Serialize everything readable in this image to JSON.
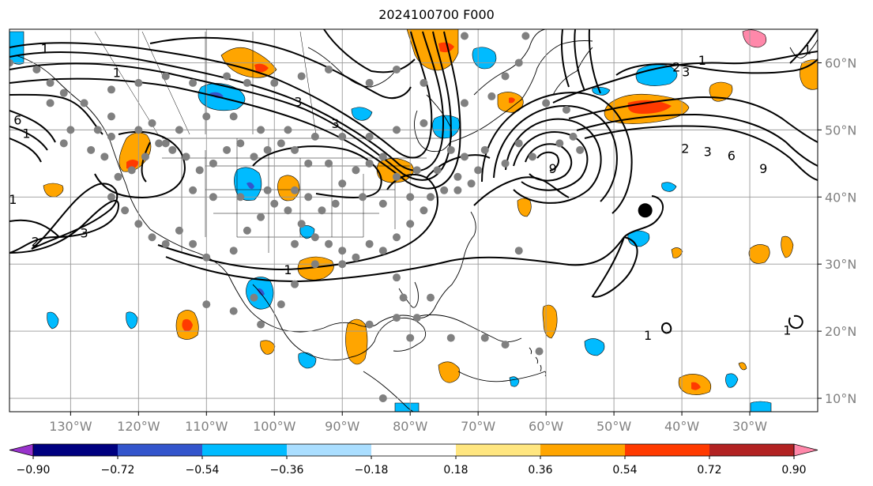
{
  "map": {
    "title": "2024100700 F000",
    "projection": "cylindrical",
    "lon_range": [
      -139,
      -20
    ],
    "lat_range": [
      8,
      65
    ],
    "grid": true,
    "lon_ticks": [
      {
        "lon": -130,
        "label": "130°W"
      },
      {
        "lon": -120,
        "label": "120°W"
      },
      {
        "lon": -110,
        "label": "110°W"
      },
      {
        "lon": -100,
        "label": "100°W"
      },
      {
        "lon": -90,
        "label": "90°W"
      },
      {
        "lon": -80,
        "label": "80°W"
      },
      {
        "lon": -70,
        "label": "70°W"
      },
      {
        "lon": -60,
        "label": "60°W"
      },
      {
        "lon": -50,
        "label": "50°W"
      },
      {
        "lon": -40,
        "label": "40°W"
      },
      {
        "lon": -30,
        "label": "30°W"
      }
    ],
    "lat_ticks": [
      {
        "lat": 60,
        "label": "60°N"
      },
      {
        "lat": 50,
        "label": "50°N"
      },
      {
        "lat": 40,
        "label": "40°N"
      },
      {
        "lat": 30,
        "label": "30°N"
      },
      {
        "lat": 20,
        "label": "20°N"
      },
      {
        "lat": 10,
        "label": "10°N"
      }
    ],
    "contour_labels": [
      {
        "text": "1",
        "lon": -123.2,
        "lat": 58.6
      },
      {
        "text": "3",
        "lon": -96.5,
        "lat": 54.2
      },
      {
        "text": "3",
        "lon": -91.0,
        "lat": 51.0
      },
      {
        "text": "6",
        "lon": -137.8,
        "lat": 51.5
      },
      {
        "text": "1",
        "lon": -136.5,
        "lat": 49.5
      },
      {
        "text": "1",
        "lon": -133.8,
        "lat": 62.2
      },
      {
        "text": "2",
        "lon": -135.2,
        "lat": 33.4
      },
      {
        "text": "3",
        "lon": -128.0,
        "lat": 34.7
      },
      {
        "text": "1",
        "lon": -138.5,
        "lat": 39.7
      },
      {
        "text": "1",
        "lon": -98.0,
        "lat": 29.2
      },
      {
        "text": "9",
        "lon": -59.0,
        "lat": 44.3
      },
      {
        "text": "1",
        "lon": -37.0,
        "lat": 60.4
      },
      {
        "text": "2",
        "lon": -40.8,
        "lat": 59.4
      },
      {
        "text": "3",
        "lon": -39.4,
        "lat": 58.7
      },
      {
        "text": "2",
        "lon": -39.5,
        "lat": 47.3
      },
      {
        "text": "3",
        "lon": -36.2,
        "lat": 46.8
      },
      {
        "text": "6",
        "lon": -32.7,
        "lat": 46.2
      },
      {
        "text": "9",
        "lon": -28.0,
        "lat": 44.3
      },
      {
        "text": "1",
        "lon": -21.5,
        "lat": 62.0
      },
      {
        "text": "1",
        "lon": -45.0,
        "lat": 19.4
      },
      {
        "text": "1",
        "lon": -24.5,
        "lat": 20.2
      }
    ],
    "marker": {
      "lon": -45.4,
      "lat": 38.0,
      "color": "#000000"
    },
    "station_color": "#808080",
    "stations": [
      [
        -139,
        60
      ],
      [
        -135,
        59
      ],
      [
        -133,
        57
      ],
      [
        -131,
        55.5
      ],
      [
        -128,
        54
      ],
      [
        -124,
        56
      ],
      [
        -120,
        57
      ],
      [
        -116,
        58
      ],
      [
        -112,
        57
      ],
      [
        -107,
        58
      ],
      [
        -104,
        57
      ],
      [
        -100,
        57
      ],
      [
        -96,
        58
      ],
      [
        -92,
        59
      ],
      [
        -86,
        57
      ],
      [
        -82,
        59
      ],
      [
        -78,
        57
      ],
      [
        -72,
        54
      ],
      [
        -68,
        55
      ],
      [
        -66,
        58
      ],
      [
        -64,
        60
      ],
      [
        -63,
        64
      ],
      [
        -72,
        64
      ],
      [
        -60,
        54
      ],
      [
        -57,
        53
      ],
      [
        -56,
        49
      ],
      [
        -55,
        47
      ],
      [
        -58,
        48
      ],
      [
        -62,
        46
      ],
      [
        -66,
        45
      ],
      [
        -64,
        48
      ],
      [
        -69,
        47
      ],
      [
        -72,
        46
      ],
      [
        -73,
        43
      ],
      [
        -76,
        44
      ],
      [
        -79,
        44
      ],
      [
        -82,
        43
      ],
      [
        -84,
        46
      ],
      [
        -86,
        45
      ],
      [
        -88,
        44
      ],
      [
        -90,
        42
      ],
      [
        -92,
        45
      ],
      [
        -95,
        45
      ],
      [
        -97,
        47
      ],
      [
        -99,
        48
      ],
      [
        -101,
        47
      ],
      [
        -103,
        46
      ],
      [
        -105,
        48
      ],
      [
        -107,
        47
      ],
      [
        -109,
        45
      ],
      [
        -111,
        44
      ],
      [
        -113,
        46
      ],
      [
        -115,
        47
      ],
      [
        -117,
        48
      ],
      [
        -119,
        46
      ],
      [
        -121,
        44
      ],
      [
        -123,
        43
      ],
      [
        -124,
        40
      ],
      [
        -122,
        38
      ],
      [
        -120,
        36
      ],
      [
        -118,
        34
      ],
      [
        -116,
        33
      ],
      [
        -114,
        35
      ],
      [
        -112,
        33
      ],
      [
        -110,
        31
      ],
      [
        -106,
        32
      ],
      [
        -104,
        35
      ],
      [
        -102,
        37
      ],
      [
        -100,
        39
      ],
      [
        -98,
        38
      ],
      [
        -96,
        36
      ],
      [
        -94,
        34
      ],
      [
        -92,
        33
      ],
      [
        -90,
        32
      ],
      [
        -88,
        31
      ],
      [
        -86,
        33
      ],
      [
        -84,
        32
      ],
      [
        -82,
        34
      ],
      [
        -80,
        36
      ],
      [
        -78,
        38
      ],
      [
        -77,
        40
      ],
      [
        -75,
        41
      ],
      [
        -73,
        41
      ],
      [
        -71,
        42
      ],
      [
        -70,
        44
      ],
      [
        -80,
        40
      ],
      [
        -84,
        39
      ],
      [
        -87,
        40
      ],
      [
        -91,
        39
      ],
      [
        -95,
        40
      ],
      [
        -93,
        38
      ],
      [
        -97,
        41
      ],
      [
        -101,
        41
      ],
      [
        -105,
        40
      ],
      [
        -109,
        40
      ],
      [
        -112,
        41
      ],
      [
        -97,
        33
      ],
      [
        -94,
        30
      ],
      [
        -90,
        30
      ],
      [
        -82,
        28
      ],
      [
        -81,
        25
      ],
      [
        -77,
        25
      ],
      [
        -79,
        22
      ],
      [
        -82,
        22
      ],
      [
        -86,
        21
      ],
      [
        -80,
        19
      ],
      [
        -74,
        19
      ],
      [
        -69,
        19
      ],
      [
        -66,
        18
      ],
      [
        -61,
        17
      ],
      [
        -64,
        32
      ],
      [
        -97,
        27
      ],
      [
        -99,
        24
      ],
      [
        -103,
        25
      ],
      [
        -106,
        23
      ],
      [
        -110,
        24
      ],
      [
        -102,
        21
      ],
      [
        -84,
        10
      ],
      [
        -116,
        48
      ],
      [
        -118,
        51
      ],
      [
        -120,
        50
      ],
      [
        -124,
        49
      ],
      [
        -114,
        50
      ],
      [
        -110,
        52
      ],
      [
        -106,
        52
      ],
      [
        -102,
        50
      ],
      [
        -98,
        50
      ],
      [
        -94,
        49
      ],
      [
        -90,
        49
      ],
      [
        -86,
        49
      ],
      [
        -82,
        50
      ],
      [
        -78,
        51
      ],
      [
        -74,
        47
      ],
      [
        -133,
        54
      ],
      [
        -130,
        50
      ],
      [
        -131,
        48
      ],
      [
        -127,
        47
      ],
      [
        -126,
        50
      ],
      [
        -124,
        52
      ],
      [
        -125,
        46
      ]
    ]
  },
  "colorbar": {
    "label_values": [
      "−0.90",
      "−0.72",
      "−0.54",
      "−0.36",
      "−0.18",
      "0.18",
      "0.36",
      "0.54",
      "0.72",
      "0.90"
    ],
    "colors": [
      "#9933cc",
      "#000080",
      "#3355cc",
      "#00bbff",
      "#aadeff",
      "#ffffff",
      "#ffe680",
      "#ffa500",
      "#ff3a00",
      "#b22222",
      "#ff88aa"
    ],
    "under_color": "#9933cc",
    "over_color": "#ff88aa"
  }
}
